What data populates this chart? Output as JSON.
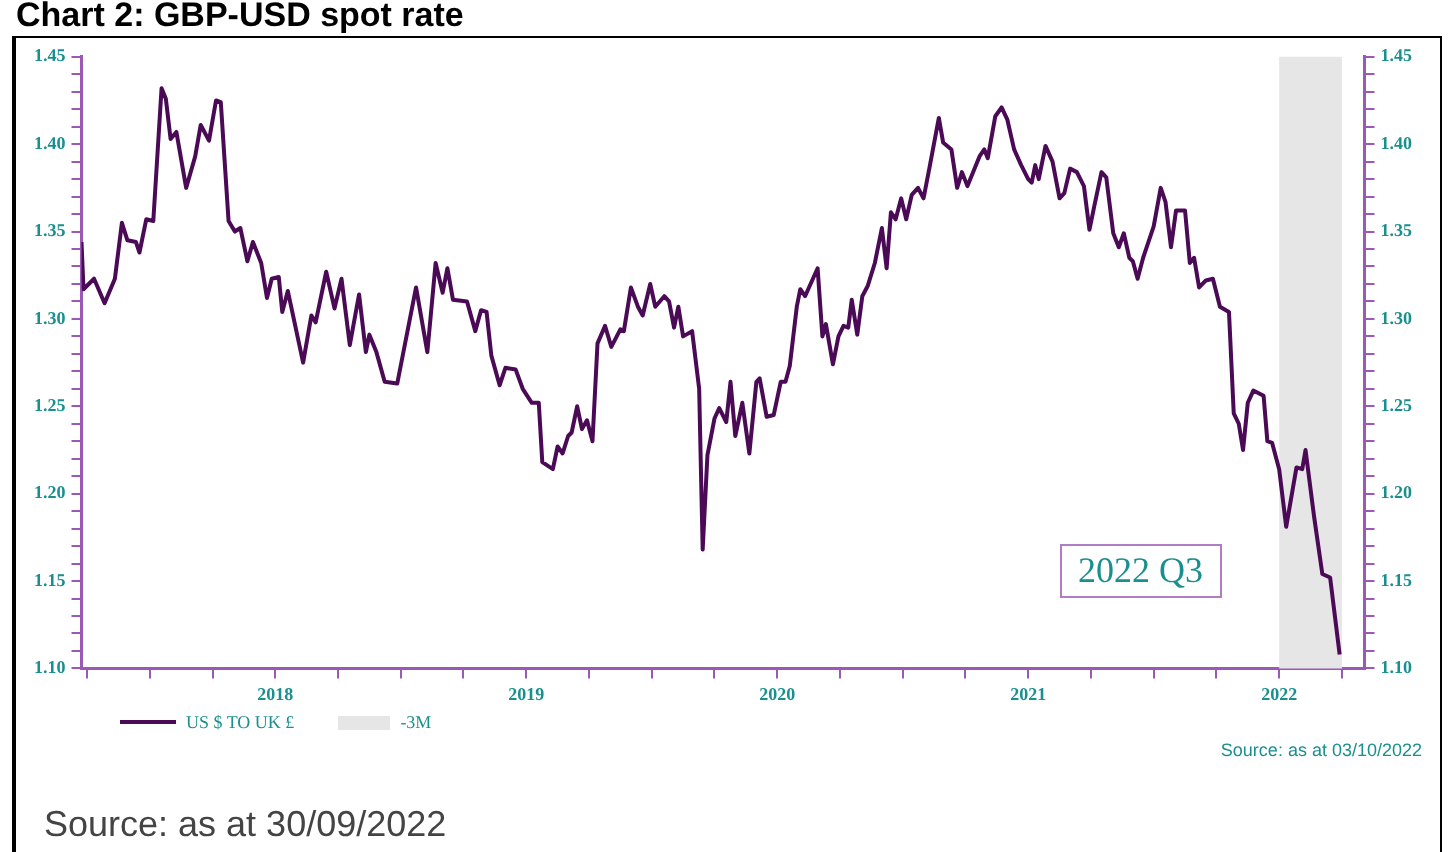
{
  "chart_data": {
    "type": "line",
    "title": "Chart 2: GBP-USD spot rate",
    "x": [
      2017.728,
      2017.736,
      2017.778,
      2017.82,
      2017.861,
      2017.889,
      2017.911,
      2017.945,
      2017.959,
      2017.986,
      2018.014,
      2018.047,
      2018.064,
      2018.083,
      2018.106,
      2018.145,
      2018.181,
      2018.203,
      2018.236,
      2018.264,
      2018.283,
      2018.314,
      2018.339,
      2018.361,
      2018.389,
      2018.411,
      2018.444,
      2018.467,
      2018.486,
      2018.514,
      2018.528,
      2018.55,
      2018.611,
      2018.644,
      2018.661,
      2018.703,
      2018.736,
      2018.764,
      2018.797,
      2018.834,
      2018.861,
      2018.875,
      2018.903,
      2018.936,
      2018.986,
      2019.061,
      2019.106,
      2019.139,
      2019.167,
      2019.186,
      2019.208,
      2019.264,
      2019.297,
      2019.32,
      2019.342,
      2019.361,
      2019.394,
      2019.417,
      2019.458,
      2019.486,
      2019.522,
      2019.55,
      2019.564,
      2019.606,
      2019.625,
      2019.645,
      2019.667,
      2019.681,
      2019.703,
      2019.722,
      2019.742,
      2019.764,
      2019.784,
      2019.814,
      2019.839,
      2019.875,
      2019.889,
      2019.917,
      2019.945,
      2019.964,
      2019.994,
      2020.014,
      2020.05,
      2020.069,
      2020.089,
      2020.106,
      2020.125,
      2020.161,
      2020.189,
      2020.203,
      2020.222,
      2020.25,
      2020.269,
      2020.297,
      2020.314,
      2020.333,
      2020.361,
      2020.389,
      2020.417,
      2020.43,
      2020.458,
      2020.486,
      2020.514,
      2020.533,
      2020.55,
      2020.578,
      2020.592,
      2020.611,
      2020.661,
      2020.68,
      2020.694,
      2020.722,
      2020.744,
      2020.764,
      2020.783,
      2020.797,
      2020.819,
      2020.839,
      2020.861,
      2020.889,
      2020.917,
      2020.936,
      2020.953,
      2020.972,
      2020.994,
      2021.014,
      2021.036,
      2021.061,
      2021.083,
      2021.106,
      2021.144,
      2021.161,
      2021.194,
      2021.217,
      2021.236,
      2021.258,
      2021.306,
      2021.325,
      2021.339,
      2021.369,
      2021.394,
      2021.417,
      2021.444,
      2021.472,
      2021.5,
      2021.514,
      2021.528,
      2021.542,
      2021.569,
      2021.597,
      2021.625,
      2021.644,
      2021.667,
      2021.694,
      2021.722,
      2021.744,
      2021.764,
      2021.792,
      2021.811,
      2021.839,
      2021.861,
      2021.881,
      2021.903,
      2021.917,
      2021.936,
      2021.958,
      2022.0,
      2022.028,
      2022.047,
      2022.069,
      2022.089,
      2022.125,
      2022.144,
      2022.161,
      2022.181,
      2022.208,
      2022.236,
      2022.264,
      2022.3,
      2022.319,
      2022.339,
      2022.356,
      2022.375,
      2022.397,
      2022.438,
      2022.453,
      2022.472,
      2022.5,
      2022.528,
      2022.569,
      2022.592,
      2022.605,
      2022.639,
      2022.672,
      2022.703,
      2022.741
    ],
    "series": [
      {
        "name": "US $ TO UK £",
        "color": "#4b0a55",
        "values": [
          1.344,
          1.317,
          1.323,
          1.309,
          1.323,
          1.355,
          1.345,
          1.344,
          1.338,
          1.357,
          1.356,
          1.432,
          1.426,
          1.403,
          1.407,
          1.375,
          1.393,
          1.411,
          1.402,
          1.425,
          1.424,
          1.356,
          1.35,
          1.352,
          1.333,
          1.344,
          1.332,
          1.312,
          1.323,
          1.324,
          1.304,
          1.316,
          1.275,
          1.302,
          1.298,
          1.327,
          1.306,
          1.323,
          1.285,
          1.314,
          1.281,
          1.291,
          1.281,
          1.264,
          1.263,
          1.318,
          1.281,
          1.332,
          1.315,
          1.329,
          1.311,
          1.31,
          1.293,
          1.305,
          1.304,
          1.279,
          1.262,
          1.272,
          1.271,
          1.26,
          1.252,
          1.252,
          1.218,
          1.214,
          1.227,
          1.223,
          1.233,
          1.235,
          1.25,
          1.237,
          1.242,
          1.23,
          1.286,
          1.296,
          1.284,
          1.294,
          1.293,
          1.318,
          1.307,
          1.302,
          1.32,
          1.307,
          1.313,
          1.31,
          1.295,
          1.307,
          1.29,
          1.293,
          1.26,
          1.168,
          1.222,
          1.243,
          1.249,
          1.241,
          1.264,
          1.233,
          1.252,
          1.223,
          1.264,
          1.266,
          1.244,
          1.245,
          1.264,
          1.264,
          1.273,
          1.307,
          1.317,
          1.313,
          1.329,
          1.29,
          1.297,
          1.274,
          1.29,
          1.296,
          1.295,
          1.311,
          1.291,
          1.313,
          1.319,
          1.332,
          1.352,
          1.329,
          1.361,
          1.357,
          1.369,
          1.357,
          1.371,
          1.375,
          1.369,
          1.386,
          1.415,
          1.401,
          1.397,
          1.375,
          1.384,
          1.376,
          1.393,
          1.397,
          1.392,
          1.416,
          1.421,
          1.414,
          1.397,
          1.388,
          1.38,
          1.378,
          1.388,
          1.38,
          1.399,
          1.39,
          1.369,
          1.372,
          1.386,
          1.384,
          1.376,
          1.351,
          1.365,
          1.384,
          1.381,
          1.349,
          1.341,
          1.349,
          1.335,
          1.333,
          1.323,
          1.335,
          1.353,
          1.375,
          1.367,
          1.341,
          1.362,
          1.362,
          1.332,
          1.335,
          1.318,
          1.322,
          1.323,
          1.307,
          1.304,
          1.246,
          1.24,
          1.225,
          1.252,
          1.259,
          1.256,
          1.23,
          1.229,
          1.214,
          1.181,
          1.215,
          1.214,
          1.225,
          1.187,
          1.154,
          1.152,
          1.108
        ]
      }
    ],
    "xlim": [
      2017.728,
      2022.84
    ],
    "xticks": [
      {
        "value": 2017.75,
        "label": null
      },
      {
        "value": 2018,
        "label": null
      },
      {
        "value": 2018.25,
        "label": null
      },
      {
        "value": 2018.5,
        "label": "2018"
      },
      {
        "value": 2018.75,
        "label": null
      },
      {
        "value": 2019,
        "label": null
      },
      {
        "value": 2019.25,
        "label": null
      },
      {
        "value": 2019.5,
        "label": "2019"
      },
      {
        "value": 2019.75,
        "label": null
      },
      {
        "value": 2020,
        "label": null
      },
      {
        "value": 2020.25,
        "label": null
      },
      {
        "value": 2020.5,
        "label": "2020"
      },
      {
        "value": 2020.75,
        "label": null
      },
      {
        "value": 2021,
        "label": null
      },
      {
        "value": 2021.25,
        "label": null
      },
      {
        "value": 2021.5,
        "label": "2021"
      },
      {
        "value": 2021.75,
        "label": null
      },
      {
        "value": 2022,
        "label": null
      },
      {
        "value": 2022.25,
        "label": null
      },
      {
        "value": 2022.5,
        "label": "2022"
      },
      {
        "value": 2022.75,
        "label": null
      }
    ],
    "ylim": [
      1.1,
      1.45
    ],
    "yticks": [
      {
        "value": 1.1,
        "label": "1.10"
      },
      {
        "value": 1.11,
        "label": null
      },
      {
        "value": 1.12,
        "label": null
      },
      {
        "value": 1.13,
        "label": null
      },
      {
        "value": 1.14,
        "label": null
      },
      {
        "value": 1.15,
        "label": "1.15"
      },
      {
        "value": 1.16,
        "label": null
      },
      {
        "value": 1.17,
        "label": null
      },
      {
        "value": 1.18,
        "label": null
      },
      {
        "value": 1.19,
        "label": null
      },
      {
        "value": 1.2,
        "label": "1.20"
      },
      {
        "value": 1.21,
        "label": null
      },
      {
        "value": 1.22,
        "label": null
      },
      {
        "value": 1.23,
        "label": null
      },
      {
        "value": 1.24,
        "label": null
      },
      {
        "value": 1.25,
        "label": "1.25"
      },
      {
        "value": 1.26,
        "label": null
      },
      {
        "value": 1.27,
        "label": null
      },
      {
        "value": 1.28,
        "label": null
      },
      {
        "value": 1.29,
        "label": null
      },
      {
        "value": 1.3,
        "label": "1.30"
      },
      {
        "value": 1.31,
        "label": null
      },
      {
        "value": 1.32,
        "label": null
      },
      {
        "value": 1.33,
        "label": null
      },
      {
        "value": 1.34,
        "label": null
      },
      {
        "value": 1.35,
        "label": "1.35"
      },
      {
        "value": 1.36,
        "label": null
      },
      {
        "value": 1.37,
        "label": null
      },
      {
        "value": 1.38,
        "label": null
      },
      {
        "value": 1.39,
        "label": null
      },
      {
        "value": 1.4,
        "label": "1.40"
      },
      {
        "value": 1.41,
        "label": null
      },
      {
        "value": 1.42,
        "label": null
      },
      {
        "value": 1.43,
        "label": null
      },
      {
        "value": 1.44,
        "label": null
      },
      {
        "value": 1.45,
        "label": "1.45"
      }
    ],
    "y2lim": [
      1.1,
      1.45
    ],
    "y2ticks": [
      {
        "value": 1.1,
        "label": "1.10"
      },
      {
        "value": 1.11,
        "label": null
      },
      {
        "value": 1.12,
        "label": null
      },
      {
        "value": 1.13,
        "label": null
      },
      {
        "value": 1.14,
        "label": null
      },
      {
        "value": 1.15,
        "label": "1.15"
      },
      {
        "value": 1.16,
        "label": null
      },
      {
        "value": 1.17,
        "label": null
      },
      {
        "value": 1.18,
        "label": null
      },
      {
        "value": 1.19,
        "label": null
      },
      {
        "value": 1.2,
        "label": "1.20"
      },
      {
        "value": 1.21,
        "label": null
      },
      {
        "value": 1.22,
        "label": null
      },
      {
        "value": 1.23,
        "label": null
      },
      {
        "value": 1.24,
        "label": null
      },
      {
        "value": 1.25,
        "label": "1.25"
      },
      {
        "value": 1.26,
        "label": null
      },
      {
        "value": 1.27,
        "label": null
      },
      {
        "value": 1.28,
        "label": null
      },
      {
        "value": 1.29,
        "label": null
      },
      {
        "value": 1.3,
        "label": "1.30"
      },
      {
        "value": 1.31,
        "label": null
      },
      {
        "value": 1.32,
        "label": null
      },
      {
        "value": 1.33,
        "label": null
      },
      {
        "value": 1.34,
        "label": null
      },
      {
        "value": 1.35,
        "label": "1.35"
      },
      {
        "value": 1.36,
        "label": null
      },
      {
        "value": 1.37,
        "label": null
      },
      {
        "value": 1.38,
        "label": null
      },
      {
        "value": 1.39,
        "label": null
      },
      {
        "value": 1.4,
        "label": "1.40"
      },
      {
        "value": 1.41,
        "label": null
      },
      {
        "value": 1.42,
        "label": null
      },
      {
        "value": 1.43,
        "label": null
      },
      {
        "value": 1.44,
        "label": null
      },
      {
        "value": 1.45,
        "label": "1.45"
      }
    ],
    "bands": [
      {
        "axis": "x",
        "from": 2022.5,
        "to": 2022.75,
        "label": "-3M",
        "color": "#e6e6e6"
      }
    ],
    "annotations": [
      "2022 Q3",
      "Source: as at 03/10/2022",
      "Source: as at 30/09/2022"
    ],
    "legend": "bottom left",
    "marker": "none",
    "grid": false
  }
}
